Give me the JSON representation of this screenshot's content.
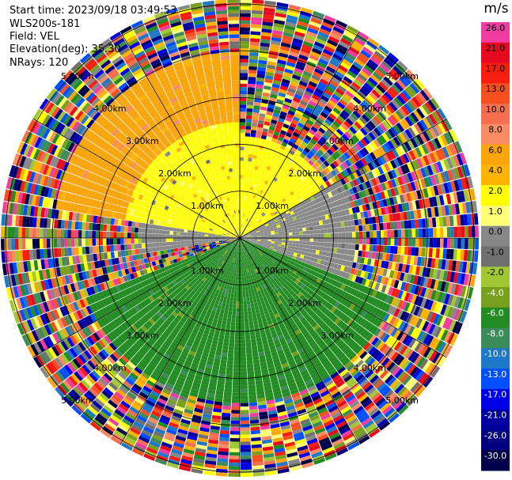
{
  "header": {
    "start_time": "Start time: 2023/09/18 03:49:53",
    "instrument": "WLS200s-181",
    "field": "Field: VEL",
    "elevation": "Elevation(deg): 35.30",
    "nrays": "NRays: 120"
  },
  "colorbar": {
    "unit": "m/s",
    "ticks": [
      "26.0",
      "21.0",
      "17.0",
      "13.0",
      "10.0",
      "8.0",
      "6.0",
      "4.0",
      "2.0",
      "1.0",
      "0.0",
      "-1.0",
      "-2.0",
      "-4.0",
      "-6.0",
      "-8.0",
      "-10.0",
      "-13.0",
      "-17.0",
      "-21.0",
      "-26.0",
      "-30.0"
    ],
    "colors": [
      "#f03ca0",
      "#e60a1e",
      "#f51e0f",
      "#f5501e",
      "#f56e50",
      "#fa8c64",
      "#faa50a",
      "#ffb400",
      "#ffff00",
      "#ffff78",
      "#888888",
      "#707070",
      "#a0c832",
      "#78a01e",
      "#228b22",
      "#3c8c5a",
      "#1e78c8",
      "#0050ff",
      "#0000e6",
      "#0000a0",
      "#000080",
      "#00004b"
    ]
  },
  "chart_data": {
    "type": "heatmap",
    "subtype": "polar PPI scan",
    "title": "",
    "field": "VEL",
    "units": "m/s",
    "nrays": 120,
    "range_rings": [
      {
        "range_km": 1.0,
        "label": "1.00km"
      },
      {
        "range_km": 2.0,
        "label": "2.00km"
      },
      {
        "range_km": 3.0,
        "label": "3.00km"
      },
      {
        "range_km": 4.0,
        "label": "4.00km"
      },
      {
        "range_km": 5.0,
        "label": "5.00km"
      }
    ],
    "ring_labels": [
      "1.00km",
      "2.00km",
      "3.00km",
      "4.00km",
      "5.00km"
    ],
    "max_range_km": 5.1,
    "sectors": [
      {
        "azimuth_deg": [
          260,
          280
        ],
        "range_km": [
          0,
          2.2
        ],
        "velocity": 0.0,
        "description": "grey near-zero band west"
      },
      {
        "azimuth_deg": [
          280,
          360
        ],
        "range_km": [
          0,
          2.5
        ],
        "velocity": 2.0,
        "description": "yellow NW"
      },
      {
        "azimuth_deg": [
          0,
          60
        ],
        "range_km": [
          0,
          2.2
        ],
        "velocity": 2.0,
        "description": "yellow NE"
      },
      {
        "azimuth_deg": [
          60,
          110
        ],
        "range_km": [
          0,
          2.5
        ],
        "velocity": 0.0,
        "description": "grey east"
      },
      {
        "azimuth_deg": [
          110,
          250
        ],
        "range_km": [
          0,
          3.5
        ],
        "velocity": -6.0,
        "description": "green south"
      },
      {
        "azimuth_deg": [
          280,
          360
        ],
        "range_km": [
          2.5,
          4.0
        ],
        "velocity": 6.0,
        "description": "orange north-west outer"
      }
    ],
    "noise_beyond_km": 4.0,
    "colorbar_levels": [
      26.0,
      21.0,
      17.0,
      13.0,
      10.0,
      8.0,
      6.0,
      4.0,
      2.0,
      1.0,
      0.0,
      -1.0,
      -2.0,
      -4.0,
      -6.0,
      -8.0,
      -10.0,
      -13.0,
      -17.0,
      -21.0,
      -26.0,
      -30.0
    ]
  }
}
